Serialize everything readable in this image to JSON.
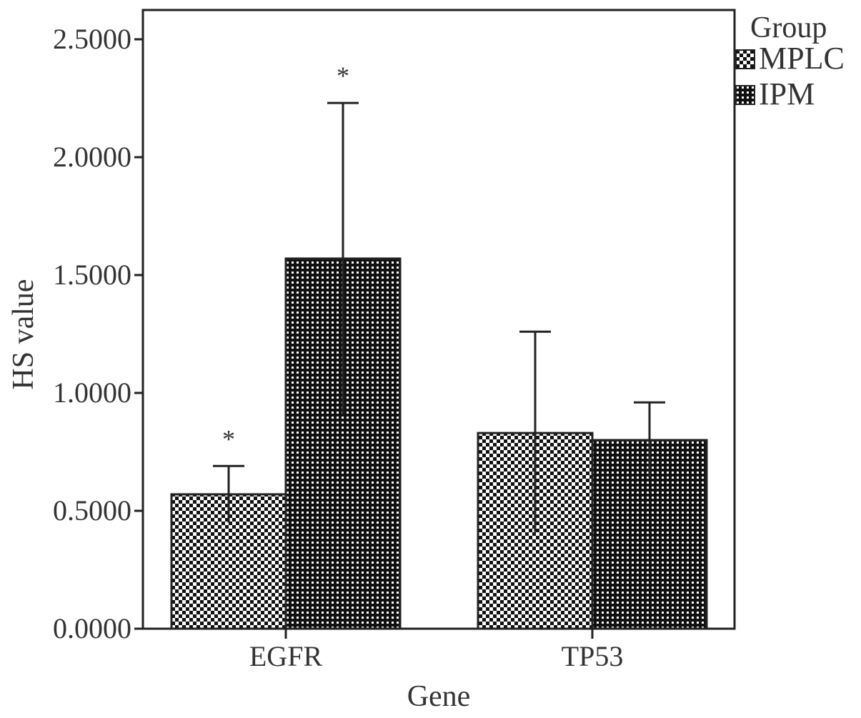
{
  "chart_data": {
    "type": "bar",
    "categories": [
      "EGFR",
      "TP53"
    ],
    "xlabel": "Gene",
    "ylabel": "HS value",
    "ylim": [
      0,
      2.5
    ],
    "yticks": [
      "0.0000",
      "0.5000",
      "1.0000",
      "1.5000",
      "2.0000",
      "2.5000"
    ],
    "ytick_values": [
      0,
      0.5,
      1.0,
      1.5,
      2.0,
      2.5
    ],
    "grid": false,
    "legend": {
      "title": "Group",
      "placement": "top-right, outside plot"
    },
    "series": [
      {
        "name": "MPLC",
        "values": [
          0.57,
          0.83
        ],
        "error_upper": [
          0.69,
          1.26
        ],
        "error_lower": [
          0.45,
          0.41
        ],
        "pattern": "checker-light",
        "annotations": [
          "*",
          ""
        ]
      },
      {
        "name": "IPM",
        "values": [
          1.57,
          0.8
        ],
        "error_upper": [
          2.23,
          0.96
        ],
        "error_lower": [
          0.91,
          0.64
        ],
        "pattern": "checker-dense",
        "annotations": [
          "*",
          ""
        ]
      }
    ]
  }
}
